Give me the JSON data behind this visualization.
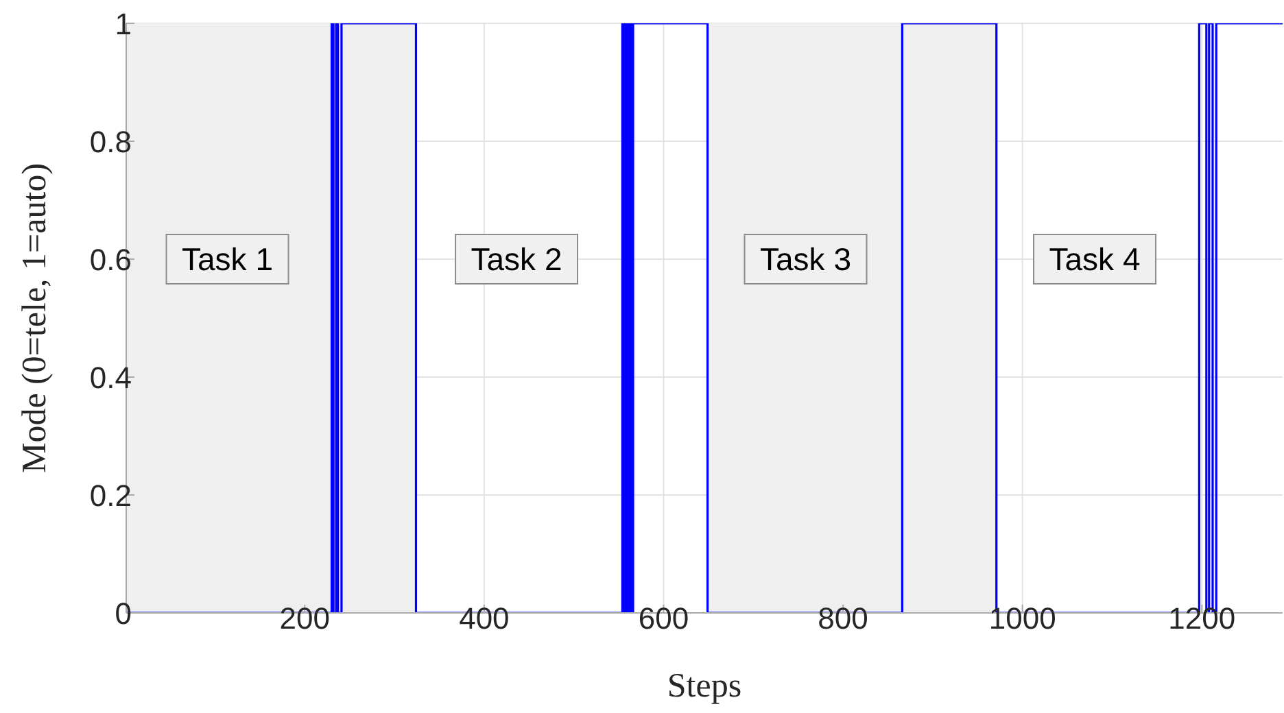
{
  "chart_data": {
    "type": "step",
    "xlabel": "Steps",
    "ylabel": "Mode (0=tele, 1=auto)",
    "x": [
      1,
      230,
      232,
      235,
      237,
      241,
      324,
      554,
      556,
      558,
      560,
      562,
      564,
      566,
      649,
      866,
      971,
      1197,
      1205,
      1208,
      1212,
      1216,
      1290
    ],
    "series": [
      {
        "color": "#0000ff",
        "values": [
          0,
          1,
          0,
          1,
          0,
          1,
          0,
          1,
          0,
          1,
          0,
          1,
          0,
          1,
          0,
          1,
          0,
          1,
          0,
          1,
          0,
          1,
          1
        ]
      }
    ],
    "xlim": [
      1,
      1290
    ],
    "xticks": [
      200,
      400,
      600,
      800,
      1000,
      1200
    ],
    "ylim": [
      0,
      1
    ],
    "yticks": [
      0,
      0.2,
      0.4,
      0.6,
      0.8,
      1
    ],
    "grid": true,
    "marker": "none",
    "line_style": "solid",
    "bands": [
      {
        "axis": "x",
        "from": 1,
        "to": 324,
        "color": "#efefef"
      },
      {
        "axis": "x",
        "from": 649,
        "to": 971,
        "color": "#efefef"
      }
    ],
    "annotations": [
      "Task 1",
      "Task 2",
      "Task 3",
      "Task 4"
    ]
  }
}
